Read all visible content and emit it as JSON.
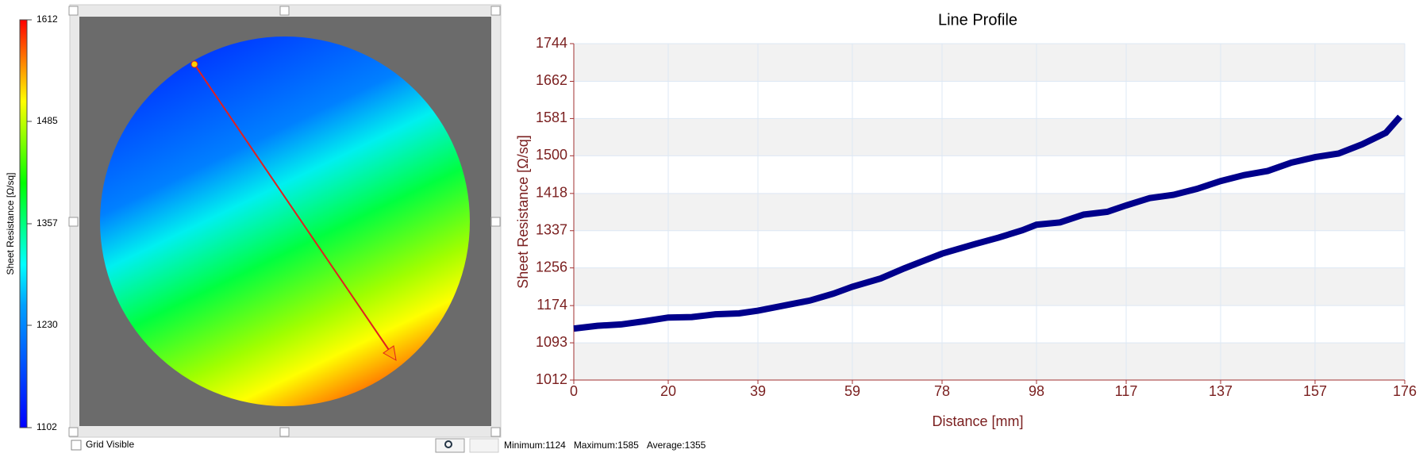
{
  "colorbar": {
    "label": "Sheet Resistance [Ω/sq]",
    "ticks": [
      1612,
      1485,
      1357,
      1230,
      1102
    ]
  },
  "grid_visible": {
    "label": "Grid Visible",
    "checked": false
  },
  "stats": [
    "Minimum:1124",
    "Maximum:1585",
    "Average:1355"
  ],
  "chart_data": {
    "type": "line",
    "title": "Line Profile",
    "xlabel": "Distance [mm]",
    "ylabel": "Sheet Resistance [Ω/sq]",
    "x": [
      0,
      5,
      10,
      15,
      20,
      25,
      30,
      35,
      39,
      45,
      50,
      55,
      59,
      65,
      70,
      75,
      78,
      85,
      90,
      95,
      98,
      103,
      108,
      113,
      117,
      122,
      127,
      132,
      137,
      142,
      147,
      152,
      157,
      162,
      167,
      172,
      175
    ],
    "series": [
      {
        "color": "#00008b",
        "values": [
          1124,
          1130,
          1133,
          1140,
          1148,
          1149,
          1155,
          1157,
          1163,
          1175,
          1185,
          1200,
          1215,
          1233,
          1255,
          1275,
          1287,
          1308,
          1322,
          1338,
          1350,
          1355,
          1372,
          1378,
          1392,
          1408,
          1415,
          1428,
          1445,
          1458,
          1467,
          1485,
          1497,
          1505,
          1525,
          1550,
          1585
        ]
      }
    ],
    "xlim": [
      0,
      176
    ],
    "xticks": [
      0,
      20,
      39,
      59,
      78,
      98,
      117,
      137,
      157,
      176
    ],
    "ylim": [
      1012,
      1744
    ],
    "yticks": [
      1012,
      1093,
      1174,
      1256,
      1337,
      1418,
      1500,
      1581,
      1662,
      1744
    ],
    "grid": true
  }
}
